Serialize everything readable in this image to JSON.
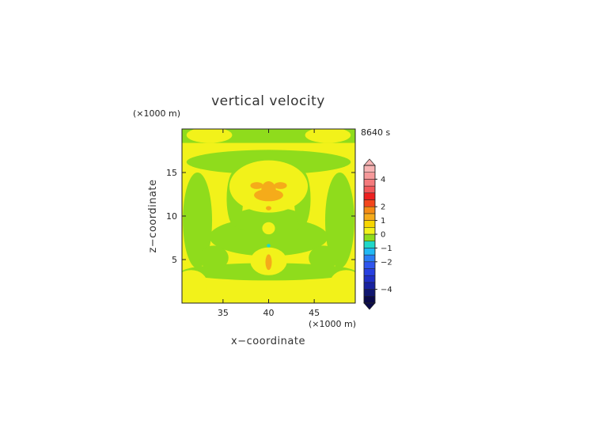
{
  "chart_data": {
    "type": "heatmap",
    "title": "vertical velocity",
    "xlabel": "x−coordinate",
    "ylabel": "z−coordinate",
    "x_unit": "(×1000 m)",
    "y_unit": "(×1000 m)",
    "time_label": "8640 s",
    "xlim": [
      30.5,
      49.5
    ],
    "ylim": [
      0,
      20
    ],
    "xticks": [
      35,
      40,
      45
    ],
    "yticks": [
      5,
      10,
      15
    ],
    "grid": false,
    "colorbar": {
      "min": -5,
      "max": 5,
      "ticks": [
        "4",
        "2",
        "1",
        "0",
        "−1",
        "−2",
        "−4"
      ],
      "tick_values": [
        4,
        2,
        1,
        0,
        -1,
        -2,
        -4
      ],
      "levels": [
        {
          "from": -5.0,
          "to": -4.5,
          "color": "#0a0a4a"
        },
        {
          "from": -4.5,
          "to": -4.0,
          "color": "#101670"
        },
        {
          "from": -4.0,
          "to": -3.5,
          "color": "#1822a0"
        },
        {
          "from": -3.5,
          "to": -3.0,
          "color": "#1f2fc6"
        },
        {
          "from": -3.0,
          "to": -2.5,
          "color": "#2740e0"
        },
        {
          "from": -2.5,
          "to": -2.0,
          "color": "#2f55ee"
        },
        {
          "from": -2.0,
          "to": -1.5,
          "color": "#2a7cf4"
        },
        {
          "from": -1.5,
          "to": -1.0,
          "color": "#20b8f4"
        },
        {
          "from": -1.0,
          "to": -0.5,
          "color": "#1fd8c8"
        },
        {
          "from": -0.5,
          "to": 0.0,
          "color": "#8fdc1c"
        },
        {
          "from": 0.0,
          "to": 0.5,
          "color": "#f2f21a"
        },
        {
          "from": 0.5,
          "to": 1.0,
          "color": "#f7d600"
        },
        {
          "from": 1.0,
          "to": 1.5,
          "color": "#f5ab1a"
        },
        {
          "from": 1.5,
          "to": 2.0,
          "color": "#f58b14"
        },
        {
          "from": 2.0,
          "to": 2.5,
          "color": "#f3461c"
        },
        {
          "from": 2.5,
          "to": 3.0,
          "color": "#ee2020"
        },
        {
          "from": 3.0,
          "to": 3.5,
          "color": "#f2585a"
        },
        {
          "from": 3.5,
          "to": 4.0,
          "color": "#f47a7c"
        },
        {
          "from": 4.0,
          "to": 4.5,
          "color": "#f6999a"
        },
        {
          "from": 4.5,
          "to": 5.0,
          "color": "#f8b4b4"
        }
      ]
    },
    "field": {
      "background_value": 0.25,
      "regions": [
        {
          "value": -0.25,
          "shape": "band",
          "x": [
            30.5,
            49.5
          ],
          "y": [
            18.4,
            20
          ]
        },
        {
          "value": 0.25,
          "shape": "ellipse",
          "cx": 33.5,
          "cy": 19.3,
          "rx": 2.5,
          "ry": 0.9
        },
        {
          "value": 0.25,
          "shape": "ellipse",
          "cx": 46.5,
          "cy": 19.3,
          "rx": 2.5,
          "ry": 0.9
        },
        {
          "value": -0.25,
          "shape": "ellipse",
          "cx": 40,
          "cy": 16.2,
          "rx": 9,
          "ry": 1.4
        },
        {
          "value": -0.25,
          "shape": "ellipse",
          "cx": 32.2,
          "cy": 9.5,
          "rx": 1.6,
          "ry": 5.5
        },
        {
          "value": -0.25,
          "shape": "ellipse",
          "cx": 47.8,
          "cy": 9.5,
          "rx": 1.6,
          "ry": 5.5
        },
        {
          "value": -0.25,
          "shape": "ellipse",
          "cx": 40,
          "cy": 7.6,
          "rx": 6.5,
          "ry": 2.2
        },
        {
          "value": -0.25,
          "shape": "ellipse",
          "cx": 40,
          "cy": 9.5,
          "rx": 4.2,
          "ry": 1.5
        },
        {
          "value": -0.25,
          "shape": "ellipse",
          "cx": 36.3,
          "cy": 12.0,
          "rx": 0.9,
          "ry": 3.2
        },
        {
          "value": -0.25,
          "shape": "ellipse",
          "cx": 43.7,
          "cy": 12.0,
          "rx": 0.9,
          "ry": 3.2
        },
        {
          "value": -0.25,
          "shape": "ellipse",
          "cx": 40,
          "cy": 3.6,
          "rx": 9.5,
          "ry": 1.0
        },
        {
          "value": -0.25,
          "shape": "ellipse",
          "cx": 34.0,
          "cy": 5.2,
          "rx": 1.6,
          "ry": 1.4
        },
        {
          "value": -0.25,
          "shape": "ellipse",
          "cx": 46.0,
          "cy": 5.2,
          "rx": 1.6,
          "ry": 1.4
        },
        {
          "value": 0.25,
          "shape": "ellipse",
          "cx": 40,
          "cy": 13.4,
          "rx": 4.3,
          "ry": 3.0
        },
        {
          "value": 0.25,
          "shape": "ellipse",
          "cx": 40,
          "cy": 8.6,
          "rx": 0.7,
          "ry": 0.7
        },
        {
          "value": 0.25,
          "shape": "ellipse",
          "cx": 40,
          "cy": 1.0,
          "rx": 9.5,
          "ry": 1.0
        },
        {
          "value": 0.25,
          "shape": "ellipse",
          "cx": 40,
          "cy": 4.8,
          "rx": 2.0,
          "ry": 1.6
        },
        {
          "value": 0.25,
          "shape": "ellipse",
          "cx": 31.5,
          "cy": 2.2,
          "rx": 1.8,
          "ry": 1.6
        },
        {
          "value": 0.25,
          "shape": "ellipse",
          "cx": 48.5,
          "cy": 2.2,
          "rx": 1.8,
          "ry": 1.6
        },
        {
          "value": 1.25,
          "shape": "ellipse",
          "cx": 40,
          "cy": 12.4,
          "rx": 1.6,
          "ry": 0.7
        },
        {
          "value": 1.25,
          "shape": "ellipse",
          "cx": 40,
          "cy": 13.0,
          "rx": 0.8,
          "ry": 1.0
        },
        {
          "value": 1.25,
          "shape": "ellipse",
          "cx": 38.7,
          "cy": 13.5,
          "rx": 0.7,
          "ry": 0.4
        },
        {
          "value": 1.25,
          "shape": "ellipse",
          "cx": 41.3,
          "cy": 13.5,
          "rx": 0.7,
          "ry": 0.4
        },
        {
          "value": 1.25,
          "shape": "ellipse",
          "cx": 40,
          "cy": 10.9,
          "rx": 0.3,
          "ry": 0.25
        },
        {
          "value": 1.25,
          "shape": "ellipse",
          "cx": 40,
          "cy": 4.7,
          "rx": 0.35,
          "ry": 0.9
        },
        {
          "value": -0.75,
          "shape": "ellipse",
          "cx": 40,
          "cy": 6.6,
          "rx": 0.2,
          "ry": 0.2
        }
      ]
    }
  }
}
